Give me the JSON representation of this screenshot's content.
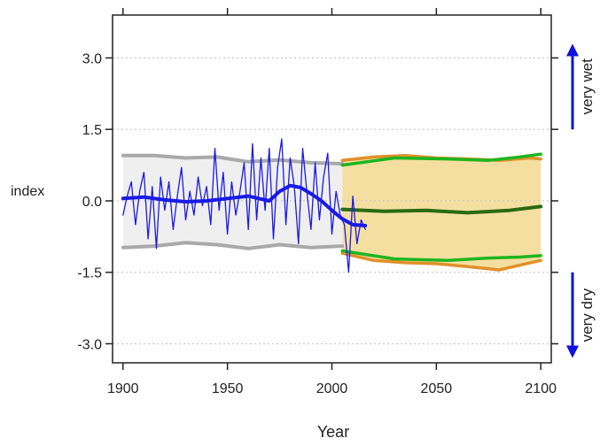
{
  "chart_data": {
    "type": "line",
    "title": "",
    "xlabel": "Year",
    "ylabel": "index",
    "xlim": [
      1895,
      2105
    ],
    "ylim": [
      -3.4,
      3.9
    ],
    "grid": "horizontal dotted",
    "x_ticks": [
      1900,
      1950,
      2000,
      2050,
      2100
    ],
    "x_tick_labels": [
      "1900",
      "1950",
      "2000",
      "2050",
      "2100"
    ],
    "y_ticks": [
      3.0,
      1.5,
      0.0,
      -1.5,
      -3.0
    ],
    "y_tick_labels": [
      "3.0",
      "1.5",
      "0.0",
      "-1.5",
      "-3.0"
    ],
    "annotations": {
      "wet_label": "very wet",
      "dry_label": "very dry"
    },
    "colors": {
      "observed": "#1a1ae6",
      "historical_band": "#a9a9a9",
      "historical_fill": "#efefef",
      "projection_fill": "#f5dfa0",
      "projection_orange": "#e0902a",
      "projection_green": "#1fb51f",
      "projection_lightgreen": "#8ee04a",
      "projection_darkgreen": "#2a6a10",
      "arrow": "#1010e0"
    },
    "series": [
      {
        "role": "historical upper bound",
        "x": [
          1900,
          1915,
          1930,
          1945,
          1960,
          1975,
          1990,
          2005
        ],
        "y": [
          0.95,
          0.95,
          0.9,
          0.92,
          0.82,
          0.86,
          0.8,
          0.78
        ]
      },
      {
        "role": "historical lower bound",
        "x": [
          1900,
          1915,
          1930,
          1945,
          1960,
          1975,
          1990,
          2005
        ],
        "y": [
          -0.98,
          -0.95,
          -0.88,
          -0.92,
          -1.0,
          -0.92,
          -0.98,
          -0.95
        ]
      },
      {
        "role": "projection upper envelope",
        "x": [
          2005,
          2020,
          2035,
          2050,
          2065,
          2080,
          2095,
          2100
        ],
        "y": [
          0.85,
          0.92,
          0.95,
          0.9,
          0.88,
          0.85,
          0.9,
          0.88
        ]
      },
      {
        "role": "projection lower envelope",
        "x": [
          2005,
          2020,
          2035,
          2050,
          2065,
          2080,
          2095,
          2100
        ],
        "y": [
          -1.1,
          -1.25,
          -1.3,
          -1.32,
          -1.38,
          -1.45,
          -1.3,
          -1.25
        ]
      },
      {
        "role": "projection green upper",
        "x": [
          2005,
          2030,
          2055,
          2075,
          2090,
          2100
        ],
        "y": [
          0.75,
          0.9,
          0.88,
          0.85,
          0.92,
          0.98
        ]
      },
      {
        "role": "projection green lower",
        "x": [
          2005,
          2030,
          2055,
          2075,
          2090,
          2100
        ],
        "y": [
          -1.05,
          -1.22,
          -1.25,
          -1.2,
          -1.18,
          -1.15
        ]
      },
      {
        "role": "projection median",
        "x": [
          2005,
          2025,
          2045,
          2065,
          2085,
          2100
        ],
        "y": [
          -0.18,
          -0.22,
          -0.2,
          -0.25,
          -0.2,
          -0.12
        ]
      },
      {
        "role": "observed annual",
        "x": [
          1900,
          1902,
          1904,
          1906,
          1908,
          1910,
          1912,
          1914,
          1916,
          1918,
          1920,
          1922,
          1924,
          1926,
          1928,
          1930,
          1932,
          1934,
          1936,
          1938,
          1940,
          1942,
          1944,
          1946,
          1948,
          1950,
          1952,
          1954,
          1956,
          1958,
          1960,
          1962,
          1964,
          1966,
          1968,
          1970,
          1972,
          1974,
          1976,
          1978,
          1980,
          1982,
          1984,
          1986,
          1988,
          1990,
          1992,
          1994,
          1996,
          1998,
          2000,
          2002,
          2004,
          2006,
          2008,
          2010,
          2012,
          2014,
          2016
        ],
        "y": [
          -0.3,
          0.1,
          0.4,
          -0.5,
          0.2,
          0.6,
          -0.8,
          0.3,
          -1.0,
          0.5,
          -0.2,
          0.4,
          -0.6,
          0.1,
          0.7,
          -0.4,
          0.2,
          -0.3,
          0.5,
          -0.1,
          0.3,
          -0.5,
          1.1,
          -0.2,
          0.6,
          -0.7,
          0.4,
          -0.3,
          0.2,
          0.8,
          -0.6,
          1.2,
          -0.4,
          0.9,
          -0.2,
          1.1,
          -0.8,
          0.7,
          1.3,
          -0.5,
          0.9,
          0.3,
          -0.9,
          1.1,
          0.2,
          -0.6,
          0.8,
          -0.4,
          0.5,
          1.0,
          -0.7,
          0.2,
          -0.3,
          -0.5,
          -1.5,
          0.1,
          -0.9,
          -0.4,
          -0.6
        ]
      },
      {
        "role": "observed smoothed",
        "x": [
          1900,
          1910,
          1920,
          1930,
          1940,
          1950,
          1960,
          1965,
          1970,
          1975,
          1980,
          1985,
          1990,
          1995,
          2000,
          2005,
          2010,
          2016
        ],
        "y": [
          0.05,
          0.08,
          0.02,
          -0.02,
          0.0,
          0.05,
          0.1,
          0.05,
          0.0,
          0.2,
          0.32,
          0.28,
          0.15,
          0.0,
          -0.2,
          -0.38,
          -0.5,
          -0.52
        ]
      }
    ]
  }
}
